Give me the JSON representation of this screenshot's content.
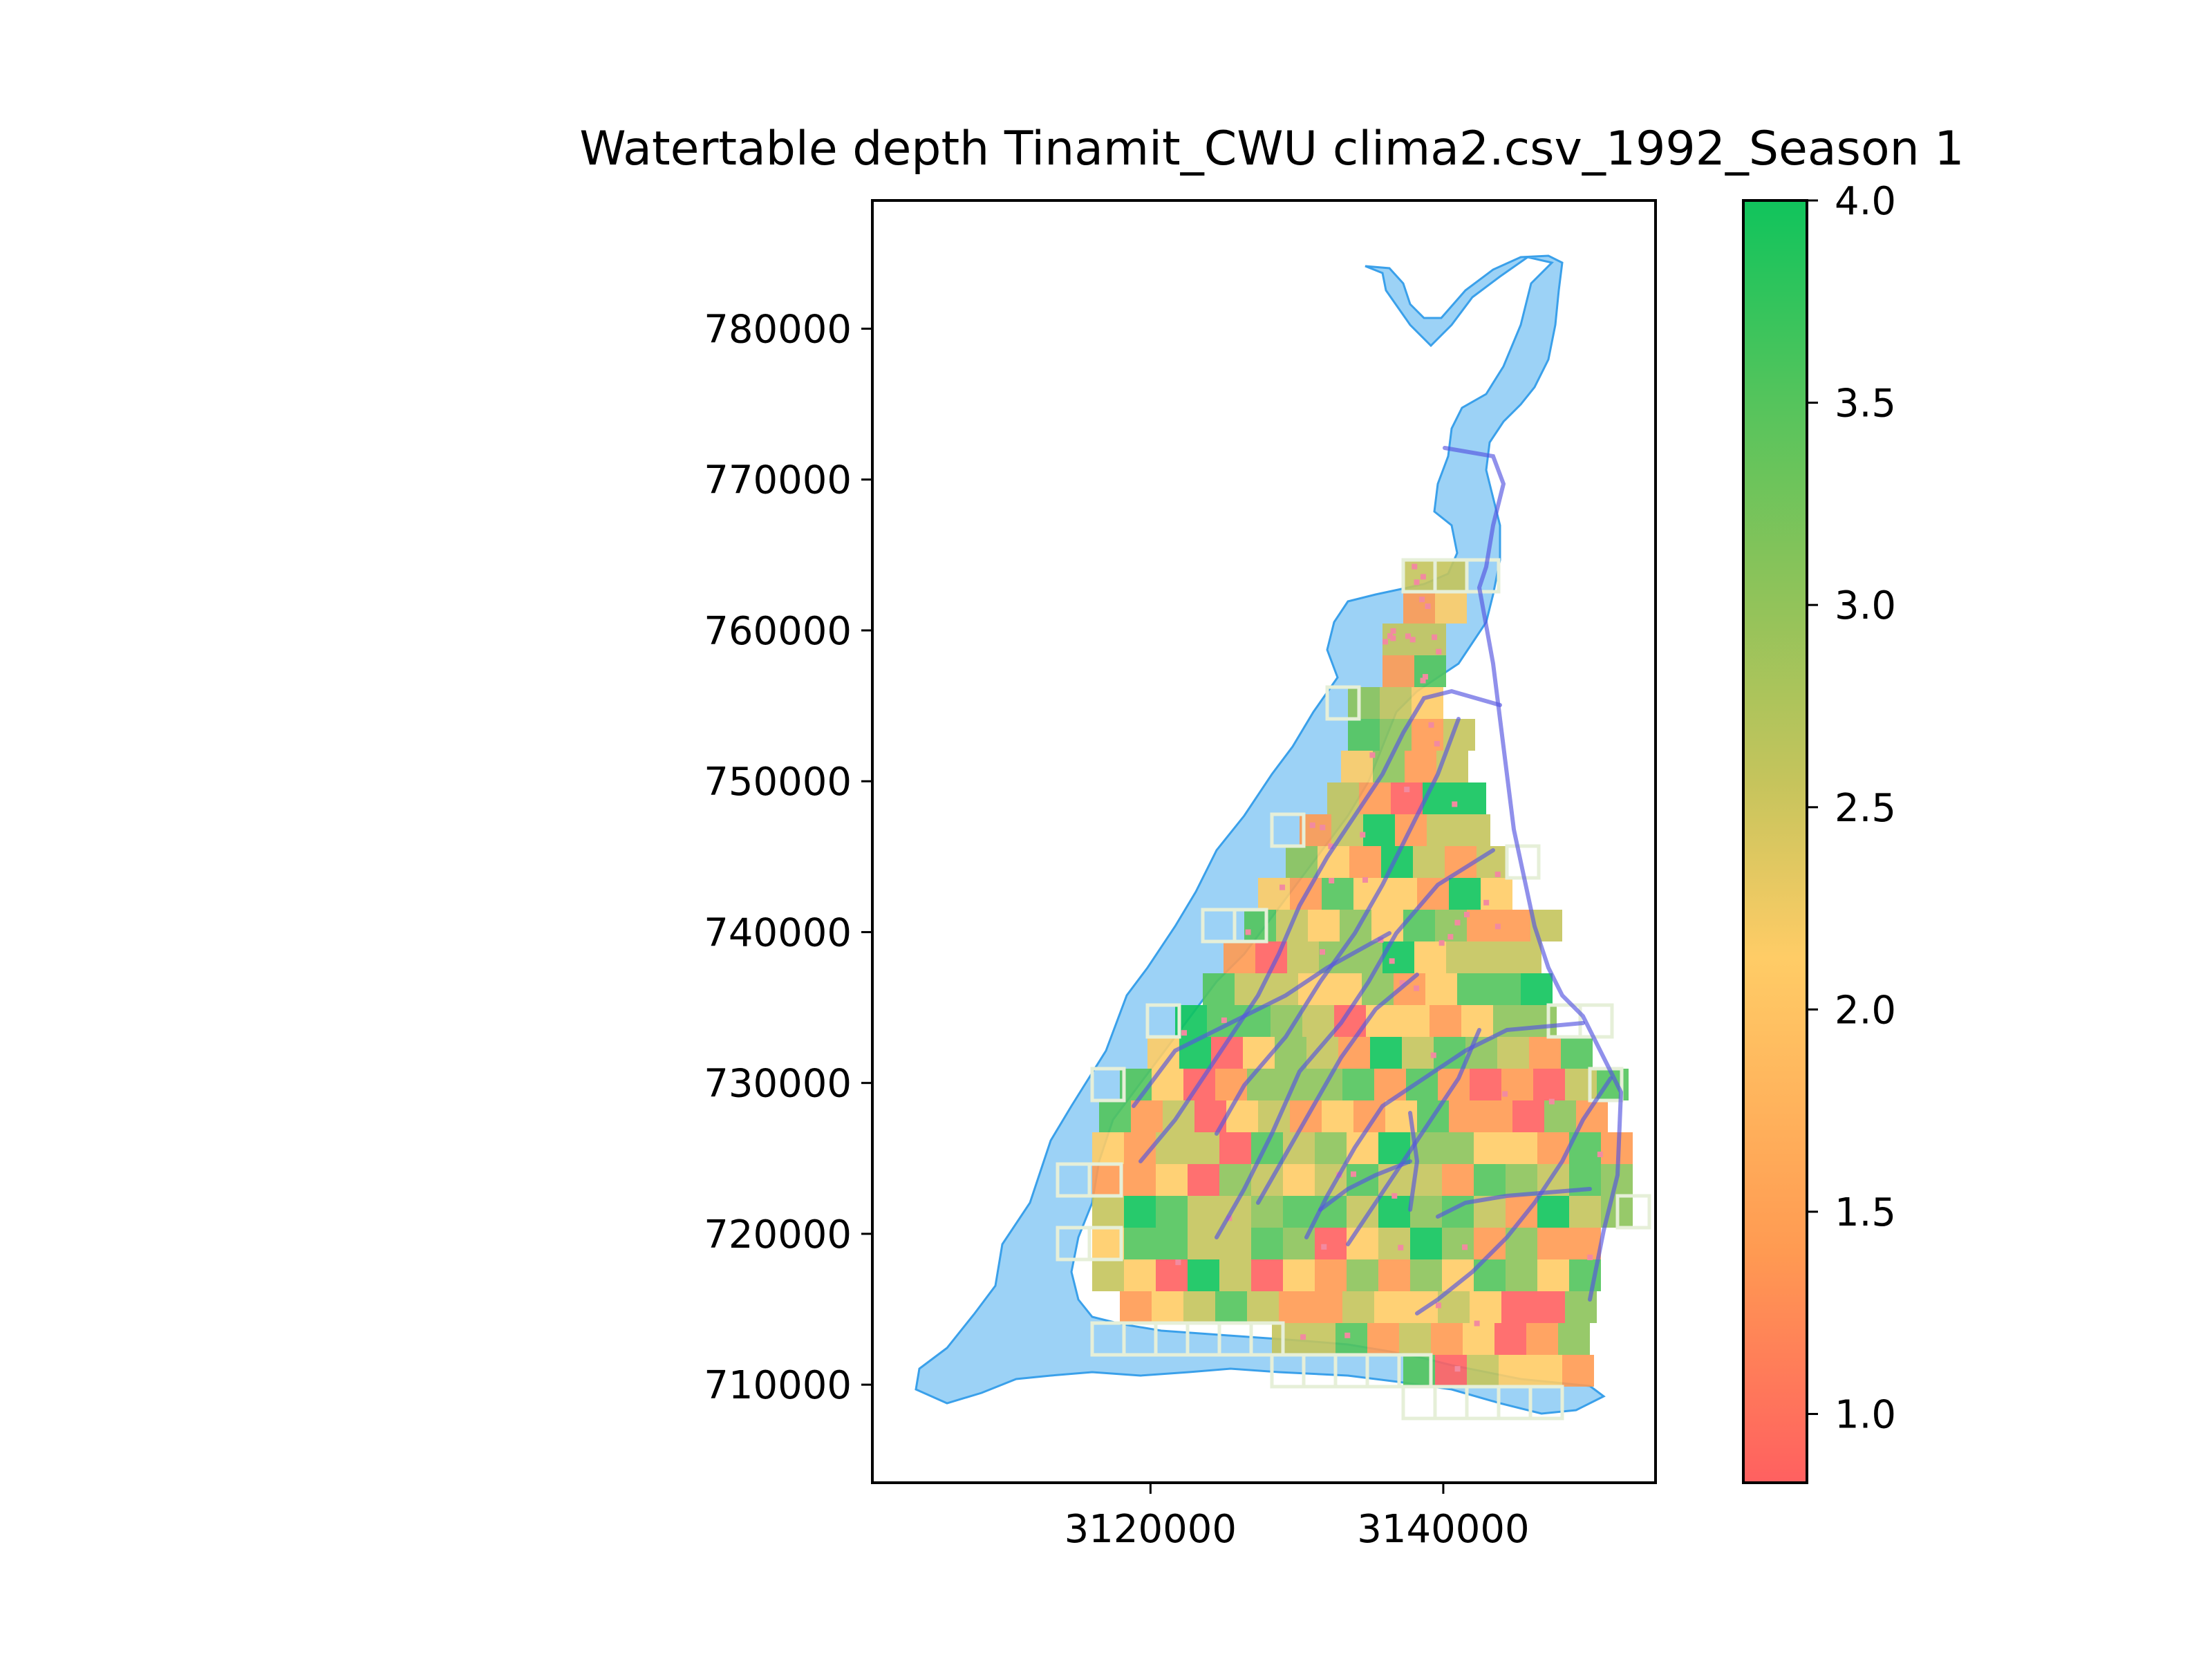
{
  "chart_data": {
    "type": "heatmap",
    "title": "Watertable depth Tinamit_CWU clima2.csv_1992_Season 1",
    "xlabel": "",
    "ylabel": "",
    "xlim": [
      3101000,
      3154500
    ],
    "ylim": [
      703500,
      788500
    ],
    "x_ticks": [
      {
        "value": 3120000,
        "label": "3120000"
      },
      {
        "value": 3140000,
        "label": "3140000"
      }
    ],
    "y_ticks": [
      {
        "value": 710000,
        "label": "710000"
      },
      {
        "value": 720000,
        "label": "720000"
      },
      {
        "value": 730000,
        "label": "730000"
      },
      {
        "value": 740000,
        "label": "740000"
      },
      {
        "value": 750000,
        "label": "750000"
      },
      {
        "value": 760000,
        "label": "760000"
      },
      {
        "value": 770000,
        "label": "770000"
      },
      {
        "value": 780000,
        "label": "780000"
      }
    ],
    "colorbar": {
      "min": 0.83,
      "max": 4.0,
      "ticks": [
        {
          "value": 1.0,
          "label": "1.0"
        },
        {
          "value": 1.5,
          "label": "1.5"
        },
        {
          "value": 2.0,
          "label": "2.0"
        },
        {
          "value": 2.5,
          "label": "2.5"
        },
        {
          "value": 3.0,
          "label": "3.0"
        },
        {
          "value": 3.5,
          "label": "3.5"
        },
        {
          "value": 4.0,
          "label": "4.0"
        }
      ],
      "colors": [
        "#ff6060",
        "#ff9a52",
        "#ffcc66",
        "#c4c45c",
        "#8cc35a",
        "#52c45c",
        "#10c45c"
      ]
    },
    "grid": false,
    "colors": {
      "water": "#5ab4f0",
      "canal": "#5555e0",
      "cell_outline": "#e6efd8"
    }
  }
}
